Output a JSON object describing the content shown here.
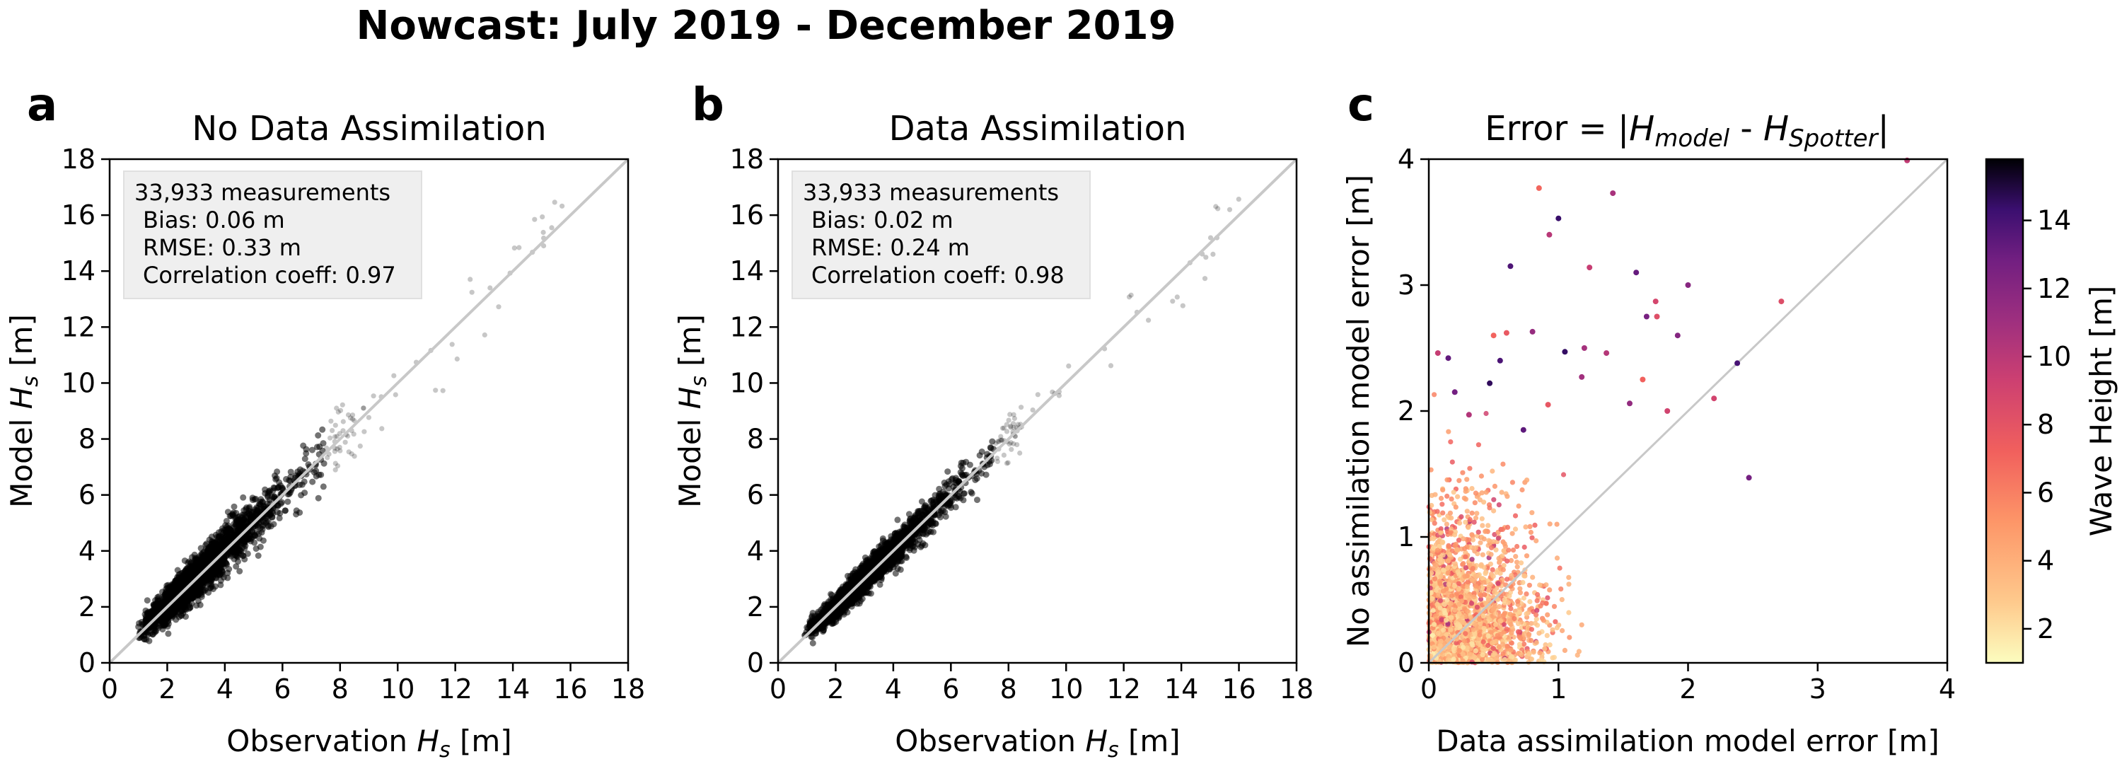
{
  "figure_title": "Nowcast: July 2019 - December 2019",
  "chart_data": [
    {
      "type": "scatter",
      "panel_label": "a",
      "title": "No Data Assimilation",
      "xlabel": "Observation H_s [m]",
      "ylabel": "Model H_s [m]",
      "xlim": [
        0,
        18
      ],
      "ylim": [
        0,
        18
      ],
      "ticks": [
        0,
        2,
        4,
        6,
        8,
        10,
        12,
        14,
        16,
        18
      ],
      "stats": {
        "measurements": "33,933 measurements",
        "bias": "Bias: 0.06 m",
        "rmse": "RMSE: 0.33 m",
        "corr": "Correlation coeff: 0.97"
      },
      "n_points": 33933,
      "bias_m": 0.06,
      "rmse_m": 0.33,
      "correlation": 0.97,
      "reference_line": "1:1",
      "point_color": "#000000"
    },
    {
      "type": "scatter",
      "panel_label": "b",
      "title": "Data Assimilation",
      "xlabel": "Observation H_s [m]",
      "ylabel": "Model H_s [m]",
      "xlim": [
        0,
        18
      ],
      "ylim": [
        0,
        18
      ],
      "ticks": [
        0,
        2,
        4,
        6,
        8,
        10,
        12,
        14,
        16,
        18
      ],
      "stats": {
        "measurements": "33,933 measurements",
        "bias": "Bias: 0.02 m",
        "rmse": "RMSE: 0.24 m",
        "corr": "Correlation coeff: 0.98"
      },
      "n_points": 33933,
      "bias_m": 0.02,
      "rmse_m": 0.24,
      "correlation": 0.98,
      "reference_line": "1:1",
      "point_color": "#000000"
    },
    {
      "type": "scatter",
      "panel_label": "c",
      "title": "Error = |H_model - H_Spotter|",
      "xlabel": "Data assimilation model error [m]",
      "ylabel": "No assimilation model error [m]",
      "xlim": [
        0,
        4
      ],
      "ylim": [
        0,
        4
      ],
      "ticks": [
        0,
        1,
        2,
        3,
        4
      ],
      "reference_line": "1:1",
      "colorbar": {
        "label": "Wave Height [m]",
        "range": [
          1,
          15.8
        ],
        "ticks": [
          2,
          4,
          6,
          8,
          10,
          12,
          14
        ],
        "colormap": "magma_r"
      },
      "highlight_points": [
        [
          0.85,
          3.77
        ],
        [
          1.42,
          3.73
        ],
        [
          1.0,
          3.53
        ],
        [
          0.93,
          3.4
        ],
        [
          0.63,
          3.15
        ],
        [
          1.24,
          3.14
        ],
        [
          1.6,
          3.1
        ],
        [
          1.75,
          2.87
        ],
        [
          1.68,
          2.75
        ],
        [
          1.76,
          2.75
        ],
        [
          2.0,
          3.0
        ],
        [
          0.6,
          2.62
        ],
        [
          0.8,
          2.63
        ],
        [
          0.5,
          2.6
        ],
        [
          1.2,
          2.5
        ],
        [
          1.05,
          2.47
        ],
        [
          1.37,
          2.46
        ],
        [
          0.55,
          2.4
        ],
        [
          0.07,
          2.46
        ],
        [
          0.15,
          2.42
        ],
        [
          2.2,
          2.1
        ],
        [
          2.47,
          1.47
        ],
        [
          2.72,
          2.87
        ],
        [
          1.92,
          2.6
        ],
        [
          0.92,
          2.05
        ],
        [
          1.55,
          2.06
        ],
        [
          1.65,
          2.25
        ],
        [
          1.18,
          2.27
        ],
        [
          0.47,
          2.22
        ],
        [
          0.31,
          1.97
        ],
        [
          2.38,
          2.38
        ],
        [
          3.69,
          3.99
        ],
        [
          0.73,
          1.85
        ],
        [
          1.84,
          2.0
        ],
        [
          0.2,
          2.15
        ]
      ]
    }
  ]
}
